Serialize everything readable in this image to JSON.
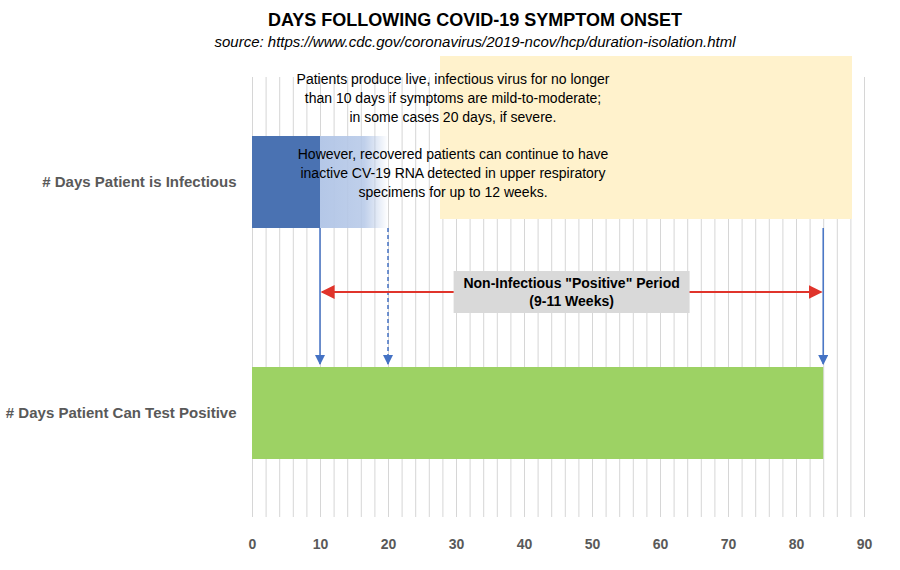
{
  "chart_data": {
    "type": "bar",
    "orientation": "horizontal",
    "title": "DAYS FOLLOWING COVID-19 SYMPTOM ONSET",
    "subtitle": "source: https://www.cdc.gov/coronavirus/2019-ncov/hcp/duration-isolation.html",
    "categories": [
      "# Days Patient is Infectious",
      "# Days Patient Can Test Positive"
    ],
    "segments": [
      {
        "category": "# Days Patient is Infectious",
        "start": 0,
        "end": 10,
        "color": "#4a72b2"
      },
      {
        "category": "# Days Patient is Infectious",
        "start": 10,
        "end": 20,
        "color": "#b4c7e7"
      },
      {
        "category": "# Days Patient Can Test Positive",
        "start": 0,
        "end": 84,
        "color": "#9dd264"
      }
    ],
    "xlim": [
      0,
      90
    ],
    "xticks": [
      0,
      10,
      20,
      30,
      40,
      50,
      60,
      70,
      80,
      90
    ],
    "minor_xticks": [
      0,
      2,
      4,
      6,
      8,
      10,
      12,
      14,
      16,
      18,
      20,
      22,
      24,
      26,
      28,
      30,
      32,
      34,
      36,
      38,
      40,
      42,
      44,
      46,
      48,
      50,
      52,
      54,
      56,
      58,
      60,
      62,
      64,
      66,
      68,
      70,
      72,
      74,
      76,
      78,
      80,
      82,
      84,
      86,
      88,
      90
    ],
    "grid": true,
    "note": [
      [
        "Patients produce live, infectious virus for no longer",
        "than 10 days if symptoms are mild-to-moderate;",
        "in some cases 20 days, if severe."
      ],
      [
        "However, recovered patients can continue to have",
        "inactive CV-19 RNA detected in upper respiratory",
        "specimens for up to 12 weeks."
      ]
    ],
    "markers": [
      {
        "x": 10,
        "line_style": "solid"
      },
      {
        "x": 20,
        "line_style": "dashed"
      },
      {
        "x": 84,
        "line_style": "solid"
      }
    ],
    "span": {
      "start": 10,
      "end": 84,
      "label": [
        "Non-Infectious \"Positive\" Period",
        "(9-11 Weeks)"
      ]
    }
  }
}
